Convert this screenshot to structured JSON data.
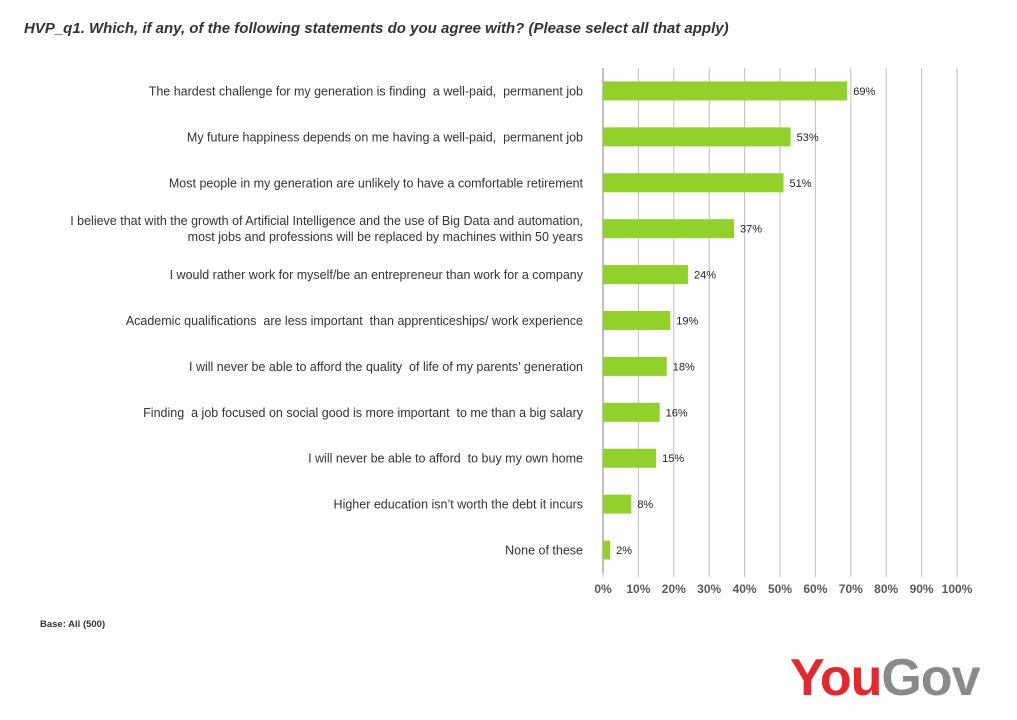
{
  "chart_data": {
    "type": "bar",
    "orientation": "horizontal",
    "title": "HVP_q1. Which, if any, of the following statements do you agree with? (Please select all that apply)",
    "categories": [
      [
        "The hardest challenge for my generation is finding  a well-paid,  permanent job"
      ],
      [
        "My future happiness depends on me having a well-paid,  permanent job"
      ],
      [
        "Most people in my generation are unlikely to have a comfortable retirement"
      ],
      [
        "I believe that with the growth of Artificial Intelligence and the use of Big Data and automation,",
        "most jobs and professions will be replaced by machines within 50 years"
      ],
      [
        "I would rather work for myself/be an entrepreneur than work for a company"
      ],
      [
        "Academic qualifications  are less important  than apprenticeships/ work experience"
      ],
      [
        "I will never be able to afford the quality  of life of my parents’ generation"
      ],
      [
        "Finding  a job focused on social good is more important  to me than a big salary"
      ],
      [
        "I will never be able to afford  to buy my own home"
      ],
      [
        "Higher education isn’t worth the debt it incurs"
      ],
      [
        "None of these"
      ]
    ],
    "values": [
      69,
      53,
      51,
      37,
      24,
      19,
      18,
      16,
      15,
      8,
      2
    ],
    "value_labels": [
      "69%",
      "53%",
      "51%",
      "37%",
      "24%",
      "19%",
      "18%",
      "16%",
      "15%",
      "8%",
      "2%"
    ],
    "x_ticks": [
      "0%",
      "10%",
      "20%",
      "30%",
      "40%",
      "50%",
      "60%",
      "70%",
      "80%",
      "90%",
      "100%"
    ],
    "xlim": [
      0,
      100
    ],
    "grid": true,
    "bar_color": "#92D02A",
    "grid_color": "#BFBFBF"
  },
  "footer": {
    "base_note": "Base: All (500)"
  },
  "logo": {
    "part1": "You",
    "part2": "Gov",
    "color_part1": "#E8272C",
    "color_part2": "#8A8A8A"
  }
}
